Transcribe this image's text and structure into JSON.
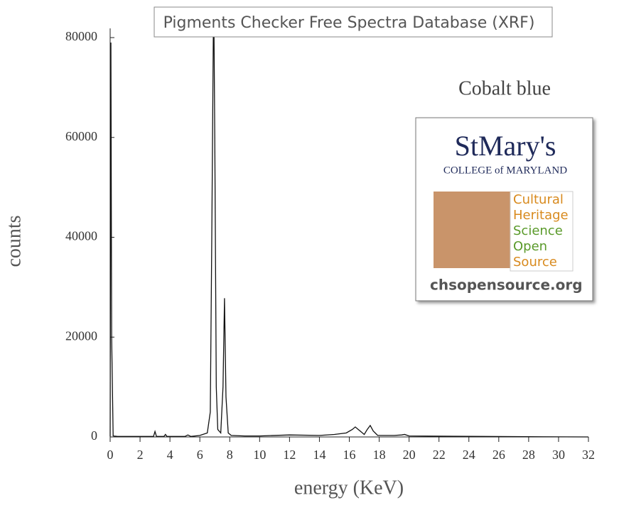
{
  "chart_data": {
    "type": "line",
    "title": "Pigments Checker Free Spectra Database (XRF)",
    "annotation": "Cobalt blue",
    "x_label": "energy (KeV)",
    "y_label": "counts",
    "x": [
      0,
      0.05,
      0.1,
      0.2,
      0.5,
      1,
      2,
      2.9,
      3.0,
      3.1,
      3.6,
      3.7,
      3.8,
      5.0,
      5.2,
      5.4,
      6.0,
      6.5,
      6.7,
      6.8,
      6.9,
      6.95,
      7.0,
      7.1,
      7.2,
      7.4,
      7.55,
      7.65,
      7.75,
      7.9,
      8.1,
      9,
      10,
      12,
      14,
      15,
      15.8,
      16.2,
      16.4,
      16.6,
      17.0,
      17.2,
      17.4,
      17.6,
      17.9,
      19,
      19.5,
      19.7,
      20,
      22,
      25,
      28,
      32
    ],
    "series": [
      {
        "name": "Cobalt blue",
        "color": "#111111",
        "values": [
          100,
          79000,
          20000,
          200,
          100,
          100,
          100,
          100,
          1100,
          100,
          100,
          500,
          100,
          100,
          400,
          100,
          300,
          800,
          5000,
          40000,
          80000,
          80000,
          60000,
          10000,
          1500,
          800,
          10000,
          27800,
          8000,
          800,
          300,
          200,
          200,
          400,
          300,
          500,
          800,
          1500,
          2000,
          1500,
          500,
          1500,
          2300,
          1200,
          300,
          300,
          400,
          500,
          200,
          150,
          100,
          50,
          0
        ]
      }
    ],
    "xlim": [
      0,
      32
    ],
    "xticks": [
      0,
      2,
      4,
      6,
      8,
      10,
      12,
      14,
      16,
      18,
      20,
      22,
      24,
      26,
      28,
      30,
      32
    ],
    "ylim": [
      0,
      80000
    ],
    "yticks": [
      0,
      20000,
      40000,
      60000,
      80000
    ],
    "grid": false
  },
  "logo": {
    "name_top": "StMary's",
    "name_bottom": "COLLEGE of MARYLAND",
    "lines": [
      "Cultural",
      "Heritage",
      "Science",
      "Open",
      "Source"
    ],
    "url": "chsopensource.org"
  }
}
